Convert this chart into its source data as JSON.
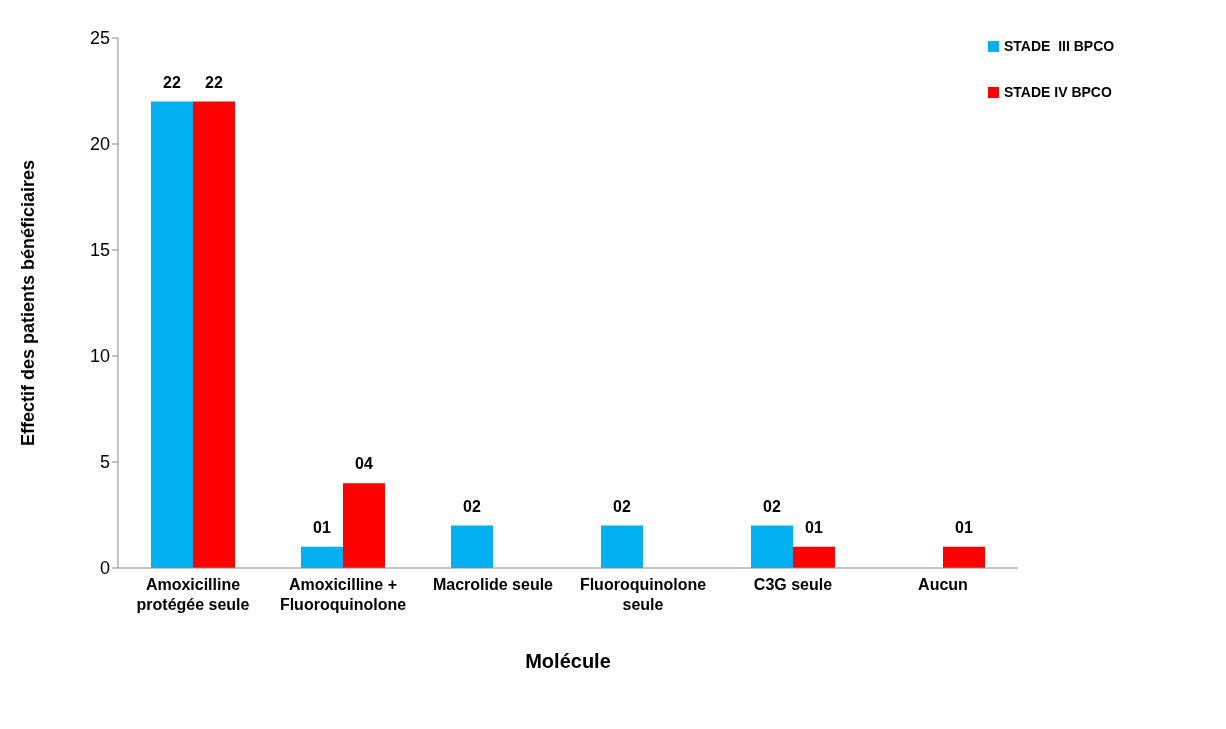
{
  "chart_data": {
    "type": "bar",
    "xlabel": "Molécule",
    "ylabel": "Effectif des patients bénéficiaires",
    "categories": [
      "Amoxicilline protégée seule",
      "Amoxicilline + Fluoroquinolone",
      "Macrolide seule",
      "Fluoroquinolone seule",
      "C3G seule",
      "Aucun"
    ],
    "series": [
      {
        "name": "STADE  III BPCO",
        "color": "#00b0f0",
        "values": [
          22,
          1,
          2,
          2,
          2,
          0
        ],
        "value_labels": [
          "22",
          "01",
          "02",
          "02",
          "02",
          null
        ]
      },
      {
        "name": "STADE IV BPCO",
        "color": "#ff0000",
        "values": [
          22,
          4,
          0,
          0,
          1,
          1
        ],
        "value_labels": [
          "22",
          "04",
          null,
          null,
          "01",
          "01"
        ]
      }
    ],
    "ylim": [
      0,
      25
    ],
    "yticks": [
      0,
      5,
      10,
      15,
      20,
      25
    ],
    "grid": false,
    "legend": "top right"
  }
}
